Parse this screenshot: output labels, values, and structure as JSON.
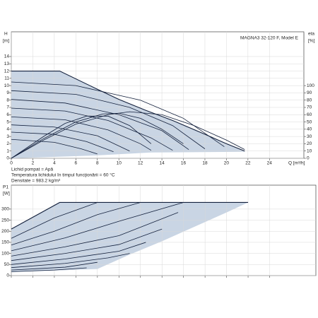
{
  "chart_data": [
    {
      "type": "line",
      "title": "MAGNA3 32-120 F, Model E",
      "ylabel": "H",
      "yunit": "[m]",
      "y2label": "eta",
      "y2unit": "[%]",
      "xlabel": "Q [m³/h]",
      "notes": [
        "Lichid pompat = Apă",
        "Temperatura lichidului în timpul funcţionării = 60 °C",
        "Densitate = 983.2 kg/m³"
      ],
      "xlim": [
        0,
        27.2
      ],
      "xticks": [
        0,
        2,
        4,
        6,
        8,
        10,
        12,
        14,
        16,
        18,
        20,
        22,
        24
      ],
      "ylim": [
        0,
        17.4
      ],
      "yticks": [
        0,
        1,
        2,
        3,
        4,
        5,
        6,
        7,
        8,
        9,
        10,
        11,
        12,
        13,
        14
      ],
      "y2lim": [
        0,
        174
      ],
      "y2ticks": [
        0,
        10,
        20,
        30,
        40,
        50,
        60,
        70,
        80,
        90,
        100
      ],
      "grid": true,
      "color": "#14213d",
      "fill": "#c9d5e4",
      "region": {
        "x": [
          0,
          4.5,
          8,
          10,
          12.5,
          15,
          18,
          20,
          21.7,
          21.7,
          13,
          8,
          0
        ],
        "values": [
          12,
          12,
          9.5,
          8.1,
          6.6,
          5.2,
          3.3,
          2,
          1,
          0.9,
          0.8,
          0.4,
          0
        ]
      },
      "series": [
        {
          "x": [
            0,
            4.5,
            8,
            10,
            12.5,
            15,
            18,
            20,
            21.7
          ],
          "values": [
            12,
            12,
            9.5,
            8.1,
            6.6,
            5.2,
            3.3,
            2,
            1
          ]
        },
        {
          "x": [
            0,
            6,
            12,
            16,
            19.8
          ],
          "values": [
            10.5,
            10,
            8,
            5.5,
            1.6
          ]
        },
        {
          "x": [
            0,
            6,
            11,
            15,
            18
          ],
          "values": [
            9.3,
            8.8,
            7,
            4.5,
            1.3
          ]
        },
        {
          "x": [
            0,
            5,
            10,
            14,
            16.5
          ],
          "values": [
            8.1,
            7.6,
            6,
            3.8,
            1.2
          ]
        },
        {
          "x": [
            0,
            5,
            9,
            13,
            15
          ],
          "values": [
            6.9,
            6.5,
            5.2,
            2.8,
            1.1
          ]
        },
        {
          "x": [
            0,
            5,
            9,
            12,
            13
          ],
          "values": [
            5.7,
            5.3,
            3.9,
            2,
            1.1
          ]
        },
        {
          "x": [
            0,
            4,
            8,
            11
          ],
          "values": [
            4.6,
            4.3,
            3.1,
            1
          ]
        },
        {
          "x": [
            0,
            4,
            7,
            9.5
          ],
          "values": [
            3.6,
            3.3,
            2.3,
            0.9
          ]
        },
        {
          "x": [
            0,
            4,
            6.5,
            8
          ],
          "values": [
            2.6,
            2.2,
            1.3,
            0.6
          ]
        },
        {
          "axis": "y2",
          "x": [
            0,
            3,
            6,
            9,
            11,
            14,
            17,
            20,
            21.7
          ],
          "values": [
            0,
            25,
            47,
            60,
            64,
            60,
            45,
            25,
            12
          ]
        },
        {
          "axis": "y2",
          "x": [
            0,
            3,
            6,
            8.5,
            10,
            12,
            14,
            16
          ],
          "values": [
            0,
            27,
            50,
            61,
            62,
            55,
            40,
            20
          ]
        },
        {
          "axis": "y2",
          "x": [
            0,
            3,
            5,
            7,
            9,
            11,
            13
          ],
          "values": [
            0,
            30,
            48,
            58,
            58,
            45,
            20
          ]
        }
      ]
    },
    {
      "type": "line",
      "ylabel": "P1",
      "yunit": "[W]",
      "xlim": [
        0,
        28.3
      ],
      "xticks": [
        0,
        2,
        4,
        6,
        8,
        10,
        12,
        14,
        16,
        18,
        20,
        22,
        24
      ],
      "ylim": [
        0,
        408
      ],
      "yticks": [
        0,
        50,
        100,
        150,
        200,
        250,
        300
      ],
      "grid": true,
      "color": "#14213d",
      "fill": "#c9d5e4",
      "region": {
        "x": [
          0,
          0,
          4.5,
          22,
          20,
          17,
          14,
          11,
          8,
          0
        ],
        "values": [
          15,
          210,
          330,
          330,
          285,
          220,
          155,
          95,
          30,
          15
        ]
      },
      "series": [
        {
          "x": [
            0,
            4.5,
            22
          ],
          "values": [
            210,
            330,
            330
          ]
        },
        {
          "x": [
            0,
            4,
            8
          ],
          "values": [
            168,
            260,
            330
          ]
        },
        {
          "x": [
            0,
            4,
            8,
            12
          ],
          "values": [
            138,
            200,
            275,
            330
          ]
        },
        {
          "x": [
            0,
            5,
            10,
            16
          ],
          "values": [
            112,
            170,
            245,
            330
          ]
        },
        {
          "x": [
            0,
            5,
            10,
            15.5
          ],
          "values": [
            88,
            130,
            180,
            285
          ]
        },
        {
          "x": [
            0,
            5,
            10,
            14
          ],
          "values": [
            68,
            100,
            140,
            210
          ]
        },
        {
          "x": [
            0,
            5,
            10,
            12.5
          ],
          "values": [
            50,
            75,
            110,
            150
          ]
        },
        {
          "x": [
            0,
            5,
            9,
            11
          ],
          "values": [
            36,
            55,
            80,
            100
          ]
        },
        {
          "x": [
            0,
            5,
            8
          ],
          "values": [
            25,
            38,
            60
          ]
        },
        {
          "x": [
            0,
            4,
            7
          ],
          "values": [
            18,
            25,
            35
          ]
        }
      ]
    }
  ]
}
